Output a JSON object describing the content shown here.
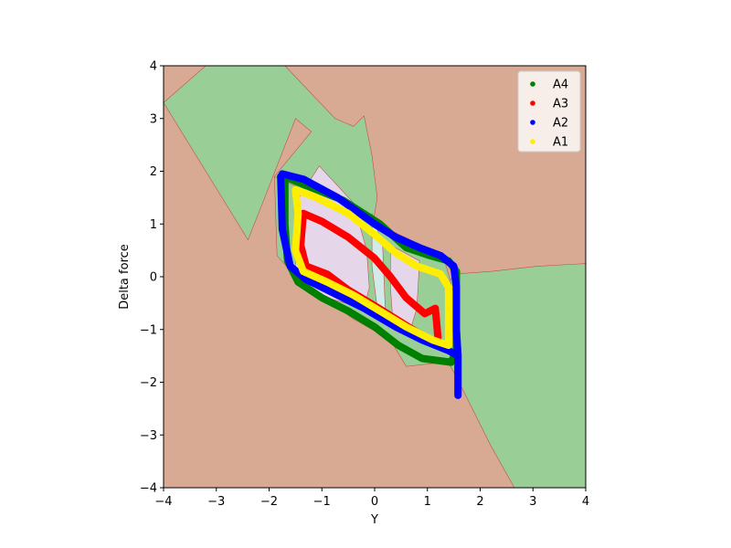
{
  "chart_data": {
    "type": "scatter",
    "title": "",
    "xlabel": "Y",
    "ylabel": "Delta force",
    "xlim": [
      -4,
      4
    ],
    "ylim": [
      -4,
      4
    ],
    "xticks": [
      -4,
      -3,
      -2,
      -1,
      0,
      1,
      2,
      3,
      4
    ],
    "yticks": [
      -4,
      -3,
      -2,
      -1,
      0,
      1,
      2,
      3,
      4
    ],
    "xtick_labels": [
      "−4",
      "−3",
      "−2",
      "−1",
      "0",
      "1",
      "2",
      "3",
      "4"
    ],
    "ytick_labels": [
      "−4",
      "−3",
      "−2",
      "−1",
      "0",
      "1",
      "2",
      "3",
      "4"
    ],
    "grid": false,
    "legend_position": "top-right",
    "background_regions": [
      {
        "class": "A1",
        "color": "#d8aa93"
      },
      {
        "class": "A4",
        "color": "#99cf96"
      },
      {
        "class": "A3",
        "color": "#e6d6ea"
      },
      {
        "class": "A2",
        "color": "#d2eaea"
      }
    ],
    "regions": {
      "green_left": [
        [
          -4,
          3.3
        ],
        [
          -3.2,
          4
        ],
        [
          -1.7,
          4
        ],
        [
          -0.75,
          3.0
        ],
        [
          -0.4,
          2.85
        ],
        [
          -0.2,
          3.05
        ],
        [
          -0.05,
          2.3
        ],
        [
          0.05,
          1.5
        ],
        [
          -0.1,
          0.6
        ],
        [
          -0.5,
          0.6
        ],
        [
          -1.0,
          0.25
        ],
        [
          -1.3,
          0.5
        ],
        [
          -1.6,
          1.1
        ],
        [
          -1.9,
          1.9
        ],
        [
          -1.2,
          2.75
        ],
        [
          -1.5,
          3.0
        ],
        [
          -2.2,
          1.2
        ],
        [
          -2.4,
          0.7
        ]
      ],
      "green_right": [
        [
          1.5,
          0.05
        ],
        [
          2.2,
          0.1
        ],
        [
          3.1,
          0.2
        ],
        [
          4,
          0.25
        ],
        [
          4,
          -4
        ],
        [
          2.65,
          -4
        ],
        [
          2.2,
          -3.2
        ],
        [
          1.55,
          -1.9
        ],
        [
          1.0,
          -0.9
        ]
      ],
      "green_band": [
        [
          -1.9,
          1.9
        ],
        [
          -1.0,
          1.5
        ],
        [
          1.3,
          0.4
        ],
        [
          1.55,
          -0.5
        ],
        [
          1.5,
          -1.6
        ],
        [
          0.6,
          -1.7
        ],
        [
          0.3,
          -1.2
        ],
        [
          -0.4,
          -0.8
        ],
        [
          -1.4,
          -0.1
        ],
        [
          -1.85,
          0.4
        ]
      ],
      "pink_main": [
        [
          -1.05,
          2.1
        ],
        [
          -0.4,
          1.4
        ],
        [
          -0.15,
          0.5
        ],
        [
          -0.1,
          -0.2
        ],
        [
          -0.2,
          -0.6
        ],
        [
          -1.25,
          -0.3
        ],
        [
          -1.5,
          -0.1
        ],
        [
          -1.5,
          1.4
        ]
      ],
      "pink_small": [
        [
          0.3,
          0.6
        ],
        [
          0.85,
          0.3
        ],
        [
          0.8,
          -0.6
        ],
        [
          0.65,
          -1.1
        ],
        [
          0.35,
          -0.9
        ],
        [
          0.3,
          -0.2
        ]
      ],
      "cyan_sliver": [
        [
          -0.05,
          1.2
        ],
        [
          0.15,
          0.6
        ],
        [
          0.2,
          -0.6
        ],
        [
          0.05,
          -0.6
        ],
        [
          -0.05,
          0.2
        ]
      ]
    },
    "series": [
      {
        "name": "A4",
        "color": "#008000",
        "path": [
          [
            -1.7,
            1.9
          ],
          [
            -1.35,
            1.75
          ],
          [
            -0.6,
            1.45
          ],
          [
            0.1,
            1.0
          ],
          [
            0.6,
            0.55
          ],
          [
            1.05,
            0.4
          ],
          [
            1.4,
            0.3
          ],
          [
            1.55,
            0.1
          ],
          [
            1.55,
            -0.6
          ],
          [
            1.55,
            -1.4
          ],
          [
            1.45,
            -1.62
          ],
          [
            0.9,
            -1.55
          ],
          [
            0.45,
            -1.3
          ],
          [
            0.0,
            -0.95
          ],
          [
            -0.5,
            -0.65
          ],
          [
            -1.0,
            -0.4
          ],
          [
            -1.45,
            -0.1
          ],
          [
            -1.65,
            0.3
          ],
          [
            -1.7,
            1.0
          ],
          [
            -1.7,
            1.9
          ]
        ]
      },
      {
        "name": "A3",
        "color": "#ff0000",
        "path": [
          [
            -1.35,
            1.2
          ],
          [
            -1.0,
            1.05
          ],
          [
            -0.5,
            0.75
          ],
          [
            0.0,
            0.35
          ],
          [
            0.3,
            0.0
          ],
          [
            0.6,
            -0.4
          ],
          [
            0.95,
            -0.7
          ],
          [
            1.15,
            -0.6
          ],
          [
            1.2,
            -1.15
          ],
          [
            1.15,
            -1.25
          ],
          [
            0.8,
            -1.05
          ],
          [
            0.4,
            -0.8
          ],
          [
            0.0,
            -0.55
          ],
          [
            -0.5,
            -0.25
          ],
          [
            -0.9,
            0.05
          ],
          [
            -1.3,
            0.2
          ],
          [
            -1.4,
            0.6
          ],
          [
            -1.35,
            1.2
          ]
        ]
      },
      {
        "name": "A2",
        "color": "#0000ff",
        "path": [
          [
            -1.75,
            1.95
          ],
          [
            -1.35,
            1.85
          ],
          [
            -0.7,
            1.5
          ],
          [
            0.0,
            1.0
          ],
          [
            0.4,
            0.75
          ],
          [
            0.85,
            0.55
          ],
          [
            1.25,
            0.4
          ],
          [
            1.5,
            0.2
          ],
          [
            1.55,
            -0.2
          ],
          [
            1.55,
            -1.0
          ],
          [
            1.58,
            -1.5
          ],
          [
            1.58,
            -2.25
          ],
          [
            1.58,
            -1.5
          ],
          [
            1.4,
            -1.4
          ],
          [
            0.9,
            -1.2
          ],
          [
            0.4,
            -0.95
          ],
          [
            -0.2,
            -0.6
          ],
          [
            -0.8,
            -0.3
          ],
          [
            -1.3,
            -0.05
          ],
          [
            -1.6,
            0.2
          ],
          [
            -1.75,
            0.9
          ],
          [
            -1.78,
            1.9
          ]
        ]
      },
      {
        "name": "A1",
        "color": "#ffee00",
        "path": [
          [
            -1.5,
            1.65
          ],
          [
            -1.1,
            1.5
          ],
          [
            -0.5,
            1.2
          ],
          [
            0.0,
            0.8
          ],
          [
            0.4,
            0.45
          ],
          [
            0.8,
            0.2
          ],
          [
            1.25,
            0.05
          ],
          [
            1.4,
            -0.2
          ],
          [
            1.4,
            -0.8
          ],
          [
            1.4,
            -1.3
          ],
          [
            1.1,
            -1.2
          ],
          [
            0.6,
            -0.95
          ],
          [
            0.1,
            -0.65
          ],
          [
            -0.4,
            -0.35
          ],
          [
            -0.9,
            -0.1
          ],
          [
            -1.35,
            0.1
          ],
          [
            -1.5,
            0.5
          ],
          [
            -1.45,
            1.2
          ],
          [
            -1.5,
            1.65
          ]
        ]
      }
    ]
  }
}
